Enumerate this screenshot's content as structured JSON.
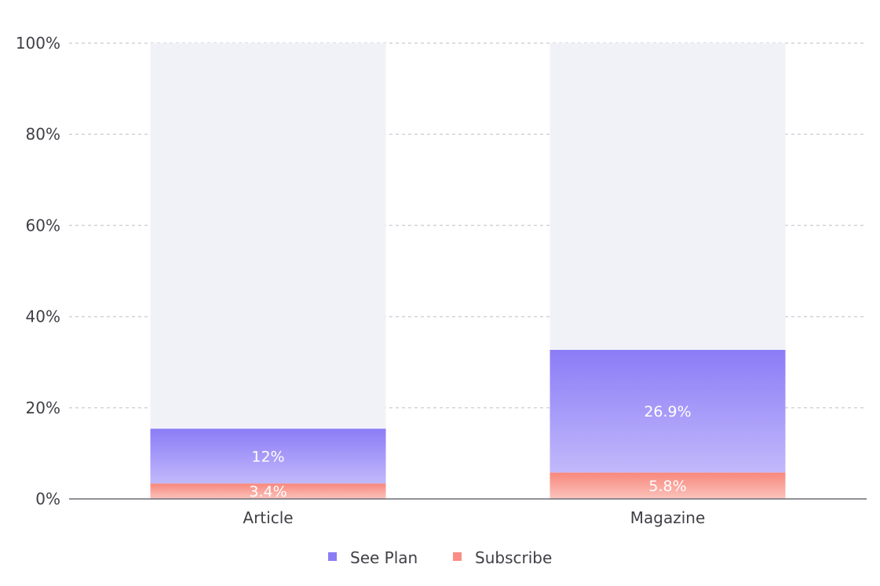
{
  "chart_data": {
    "type": "bar",
    "stacked": true,
    "categories": [
      "Article",
      "Magazine"
    ],
    "series": [
      {
        "name": "Subscribe",
        "values": [
          3.4,
          5.8
        ],
        "labels": [
          "3.4%",
          "5.8%"
        ],
        "color": "#f87171"
      },
      {
        "name": "See Plan",
        "values": [
          12,
          26.9
        ],
        "labels": [
          "12%",
          "26.9%"
        ],
        "color": "#8b7cf6"
      }
    ],
    "ylim": [
      0,
      100
    ],
    "y_ticks": [
      "0%",
      "20%",
      "40%",
      "60%",
      "80%",
      "100%"
    ],
    "y_tick_values": [
      0,
      20,
      40,
      60,
      80,
      100
    ],
    "grid": true,
    "background_color": "#f1f2f8",
    "legend": {
      "position": "bottom-center",
      "items": [
        {
          "label": "See Plan",
          "color": "#8b7cf6"
        },
        {
          "label": "Subscribe",
          "color": "#fb8d85"
        }
      ]
    }
  }
}
